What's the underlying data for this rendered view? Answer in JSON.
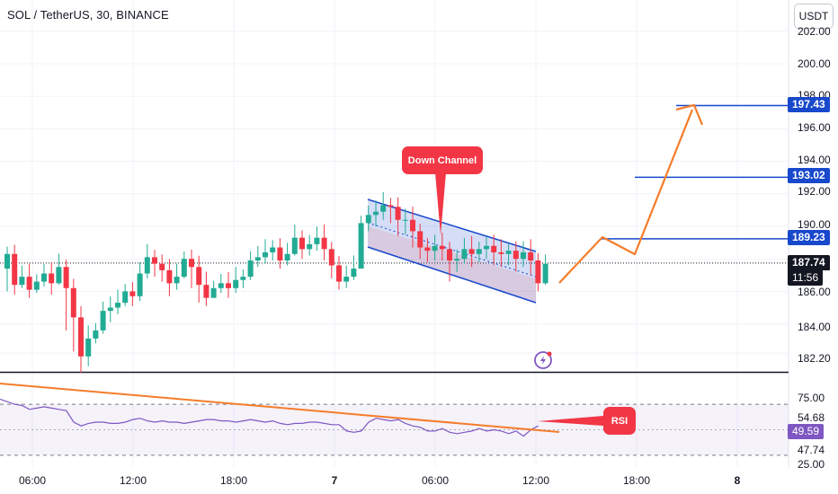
{
  "header": {
    "symbol_title": "SOL / TetherUS, 30, BINANCE"
  },
  "currency_button": {
    "label": "USDT"
  },
  "price_axis": {
    "labels": [
      "202.00",
      "200.00",
      "198.00",
      "196.00",
      "194.00",
      "192.00",
      "190.00",
      "186.00",
      "184.00",
      "182.20"
    ],
    "levels": [
      202,
      200,
      198,
      196,
      194,
      192,
      190,
      186,
      184,
      182.2
    ]
  },
  "price_tags": {
    "target_3": {
      "value": "197.43",
      "level": 197.43,
      "color": "#1848cc"
    },
    "target_2": {
      "value": "193.02",
      "level": 193.02,
      "color": "#1848cc"
    },
    "target_1": {
      "value": "189.23",
      "level": 189.23,
      "color": "#1848cc"
    },
    "last_price": {
      "value": "187.74",
      "level": 187.74,
      "color": "#131722"
    },
    "countdown": "11:56"
  },
  "rsi_axis": {
    "labels": [
      "75.00",
      "54.68",
      "47.74",
      "25.00"
    ],
    "levels": [
      75,
      54.68,
      47.74,
      25
    ],
    "current": {
      "value": "49.59",
      "level": 49.59,
      "color": "#7e57c2"
    }
  },
  "time_axis": {
    "labels": [
      "06:00",
      "12:00",
      "18:00",
      "7",
      "06:00",
      "12:00",
      "18:00",
      "8"
    ]
  },
  "annotations": {
    "down_channel": {
      "label": "Down Channel",
      "color": "#f23645"
    },
    "rsi": {
      "label": "RSI",
      "color": "#f23645"
    }
  },
  "colors": {
    "up_candle": "#22ab94",
    "down_candle": "#f23645",
    "channel_line": "#1848cc",
    "projection": "#f57c2a",
    "rsi_line": "#7e57c2",
    "rsi_trend": "#f57c2a"
  },
  "icons": {
    "alert": "lightning-alert-icon"
  }
}
